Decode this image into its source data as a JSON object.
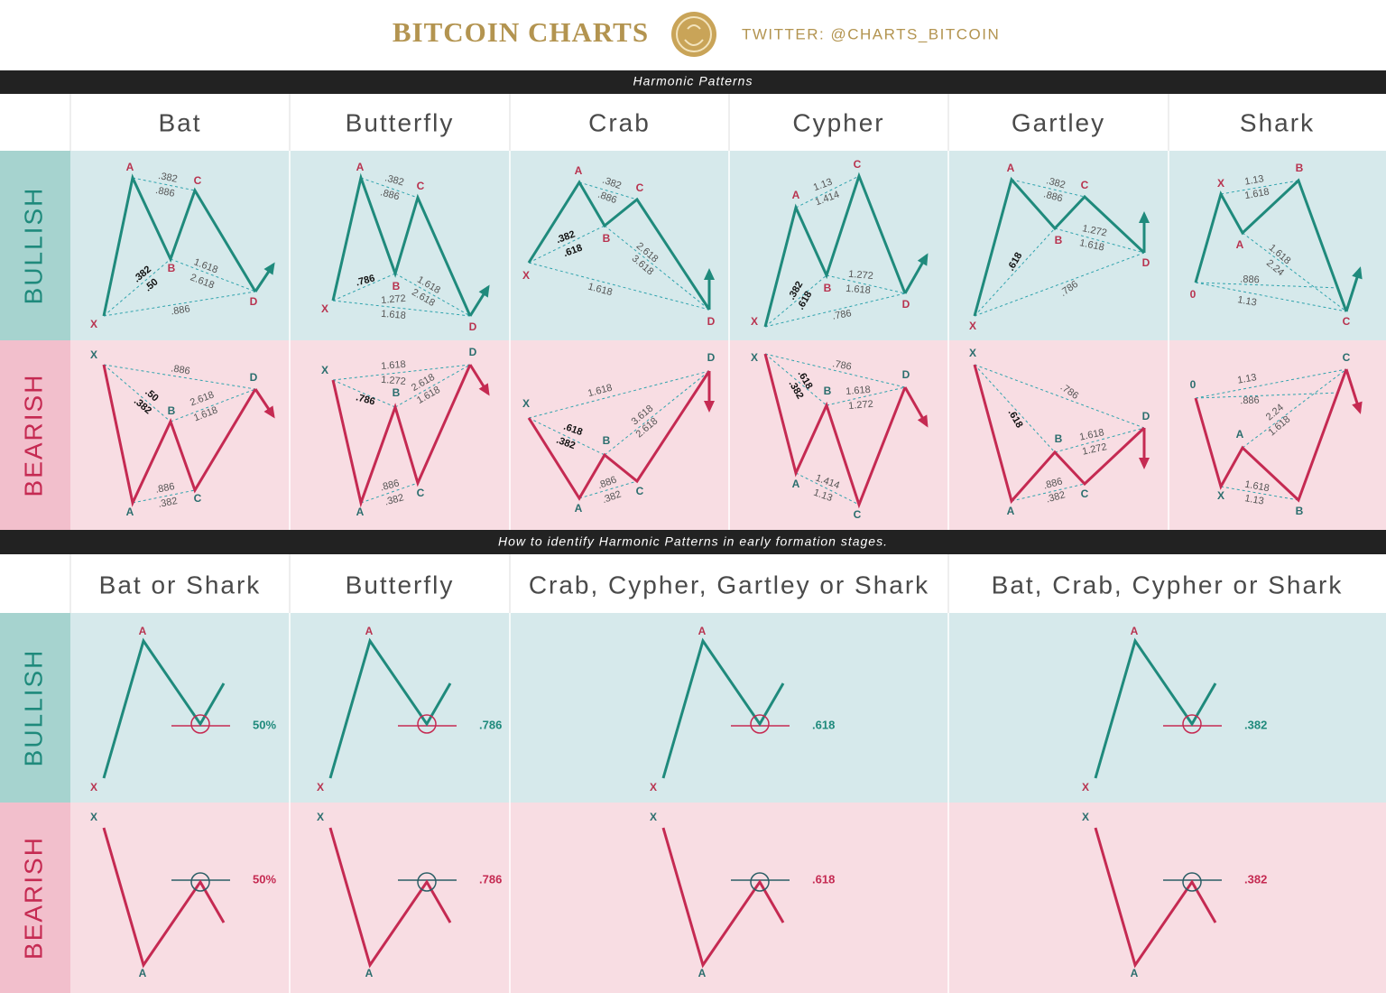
{
  "header": {
    "title": "BITCOIN CHARTS",
    "twitter": "TWITTER: @CHARTS_BITCOIN"
  },
  "harmonic": {
    "banner": "Harmonic Patterns",
    "row_labels": [
      "BULLISH",
      "BEARISH"
    ],
    "patterns": [
      {
        "name": "Bat",
        "bullish": {
          "points": [
            "X",
            "A",
            "B",
            "C",
            "D"
          ],
          "ratios": [
            ".382",
            ".886",
            ".382",
            ".50",
            "1.618",
            "2.618",
            ".886"
          ]
        },
        "bearish": {
          "points": [
            "X",
            "A",
            "B",
            "C",
            "D"
          ],
          "ratios": [
            ".382",
            ".886",
            ".382",
            ".50",
            "1.618",
            "2.618",
            ".886"
          ]
        }
      },
      {
        "name": "Butterfly",
        "bullish": {
          "points": [
            "X",
            "A",
            "B",
            "C",
            "D"
          ],
          "ratios": [
            ".382",
            ".886",
            ".786",
            "1.618",
            "2.618",
            "1.272",
            "1.618"
          ]
        },
        "bearish": {
          "points": [
            "X",
            "A",
            "B",
            "C",
            "D"
          ],
          "ratios": [
            ".382",
            ".886",
            ".786",
            "1.618",
            "2.618",
            "1.272",
            "1.618"
          ]
        }
      },
      {
        "name": "Crab",
        "bullish": {
          "points": [
            "X",
            "A",
            "B",
            "C",
            "D"
          ],
          "ratios": [
            ".382",
            ".886",
            ".382",
            ".618",
            "2.618",
            "3.618",
            "1.618"
          ]
        },
        "bearish": {
          "points": [
            "X",
            "A",
            "B",
            "C",
            "D"
          ],
          "ratios": [
            ".382",
            ".886",
            ".382",
            ".618",
            "2.618",
            "3.618",
            "1.618"
          ]
        }
      },
      {
        "name": "Cypher",
        "bullish": {
          "points": [
            "X",
            "A",
            "B",
            "C",
            "D"
          ],
          "ratios": [
            "1.13",
            "1.414",
            ".382",
            ".618",
            "1.272",
            "1.618",
            ".786"
          ]
        },
        "bearish": {
          "points": [
            "X",
            "A",
            "B",
            "C",
            "D"
          ],
          "ratios": [
            "1.13",
            "1.414",
            ".382",
            ".618",
            "1.272",
            "1.618",
            ".786"
          ]
        }
      },
      {
        "name": "Gartley",
        "bullish": {
          "points": [
            "X",
            "A",
            "B",
            "C",
            "D"
          ],
          "ratios": [
            ".382",
            ".886",
            ".618",
            "1.272",
            "1.618",
            ".786"
          ]
        },
        "bearish": {
          "points": [
            "X",
            "A",
            "B",
            "C",
            "D"
          ],
          "ratios": [
            ".382",
            ".886",
            ".618",
            "1.272",
            "1.618",
            ".786"
          ]
        }
      },
      {
        "name": "Shark",
        "bullish": {
          "points": [
            "0",
            "X",
            "A",
            "B",
            "C"
          ],
          "ratios": [
            "1.13",
            "1.618",
            "1.618",
            "2.24",
            ".886",
            "1.13"
          ]
        },
        "bearish": {
          "points": [
            "0",
            "X",
            "A",
            "B",
            "C"
          ],
          "ratios": [
            "1.13",
            "1.618",
            "1.618",
            "2.24",
            ".886",
            "1.13"
          ]
        }
      }
    ]
  },
  "early": {
    "banner": "How to identify Harmonic Patterns in early formation stages.",
    "row_labels": [
      "BULLISH",
      "BEARISH"
    ],
    "patterns": [
      {
        "name": "Bat or Shark",
        "bullish": {
          "points": [
            "X",
            "A"
          ],
          "level": "50%"
        },
        "bearish": {
          "points": [
            "X",
            "A"
          ],
          "level": "50%"
        }
      },
      {
        "name": "Butterfly",
        "bullish": {
          "points": [
            "X",
            "A"
          ],
          "level": ".786"
        },
        "bearish": {
          "points": [
            "X",
            "A"
          ],
          "level": ".786"
        }
      },
      {
        "name": "Crab, Cypher, Gartley or Shark",
        "bullish": {
          "points": [
            "X",
            "A"
          ],
          "level": ".618"
        },
        "bearish": {
          "points": [
            "X",
            "A"
          ],
          "level": ".618"
        }
      },
      {
        "name": "Bat, Crab, Cypher or Shark",
        "bullish": {
          "points": [
            "X",
            "A"
          ],
          "level": ".382"
        },
        "bearish": {
          "points": [
            "X",
            "A"
          ],
          "level": ".382"
        }
      }
    ]
  }
}
